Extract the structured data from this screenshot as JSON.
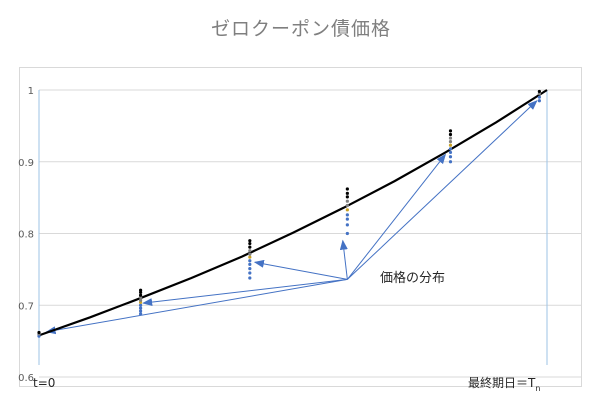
{
  "chart_data": {
    "type": "line",
    "title": "ゼロクーポン債価格",
    "xlabel": "",
    "ylabel": "",
    "x_start_label": "t=0",
    "x_end_label": "最終期日＝T",
    "x_end_label_sub": "n",
    "annotation": "価格の分布",
    "xlim": [
      0,
      1
    ],
    "ylim": [
      0.6,
      1.0
    ],
    "yticks": [
      "0.6",
      "0.7",
      "0.8",
      "0.9",
      "1"
    ],
    "yvalues": [
      0.6,
      0.7,
      0.8,
      0.9,
      1.0
    ],
    "grid": true,
    "curve": {
      "x": [
        0,
        0.1,
        0.2,
        0.3,
        0.4,
        0.5,
        0.6,
        0.7,
        0.8,
        0.9,
        1.0
      ],
      "y": [
        0.658,
        0.683,
        0.71,
        0.738,
        0.768,
        0.801,
        0.836,
        0.873,
        0.913,
        0.955,
        1.0
      ]
    },
    "distributions": [
      {
        "x": 0.0,
        "y": [
          0.657,
          0.659,
          0.66,
          0.662
        ]
      },
      {
        "x": 0.2,
        "y": [
          0.688,
          0.692,
          0.696,
          0.7,
          0.704,
          0.707,
          0.711,
          0.714,
          0.718,
          0.721
        ]
      },
      {
        "x": 0.415,
        "y": [
          0.738,
          0.745,
          0.751,
          0.757,
          0.762,
          0.767,
          0.771,
          0.776,
          0.781,
          0.786,
          0.79
        ]
      },
      {
        "x": 0.607,
        "y": [
          0.8,
          0.812,
          0.82,
          0.826,
          0.833,
          0.839,
          0.845,
          0.851,
          0.856,
          0.862
        ]
      },
      {
        "x": 0.81,
        "y": [
          0.9,
          0.907,
          0.913,
          0.918,
          0.923,
          0.928,
          0.933,
          0.938,
          0.943
        ]
      },
      {
        "x": 0.985,
        "y": [
          0.985,
          0.99,
          0.995,
          0.998
        ]
      }
    ],
    "annotation_point": {
      "x": 0.607,
      "y": 0.736
    },
    "arrow_targets": [
      {
        "x": 0.015,
        "y": 0.663
      },
      {
        "x": 0.205,
        "y": 0.703
      },
      {
        "x": 0.425,
        "y": 0.76
      },
      {
        "x": 0.598,
        "y": 0.79
      },
      {
        "x": 0.8,
        "y": 0.91
      },
      {
        "x": 0.98,
        "y": 0.985
      }
    ]
  },
  "colors": {
    "curve": "#000000",
    "arrow": "#4472c4",
    "grid": "#d9d9d9",
    "dot_dark": "#000000",
    "dot_mid": "#808080",
    "dot_blue": "#4472c4",
    "dot_gold": "#c9a227"
  }
}
